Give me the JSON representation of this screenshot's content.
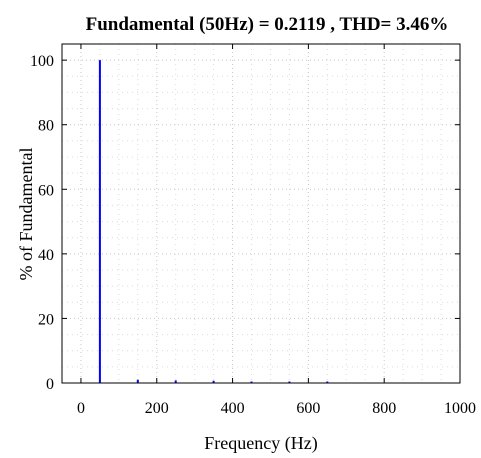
{
  "chart_data": {
    "type": "bar",
    "title": "Fundamental (50Hz) = 0.2119 , THD= 3.46%",
    "xlabel": "Frequency (Hz)",
    "ylabel": "% of Fundamental",
    "xlim": [
      -50,
      1000
    ],
    "ylim": [
      0,
      105
    ],
    "xticks": [
      0,
      200,
      400,
      600,
      800,
      1000
    ],
    "yticks": [
      0,
      20,
      40,
      60,
      80,
      100
    ],
    "grid": true,
    "series_color": "#0000ff",
    "x": [
      50,
      150,
      250,
      350,
      450,
      550,
      650
    ],
    "values": [
      100,
      1.0,
      0.8,
      0.7,
      0.4,
      0.4,
      0.3
    ]
  }
}
